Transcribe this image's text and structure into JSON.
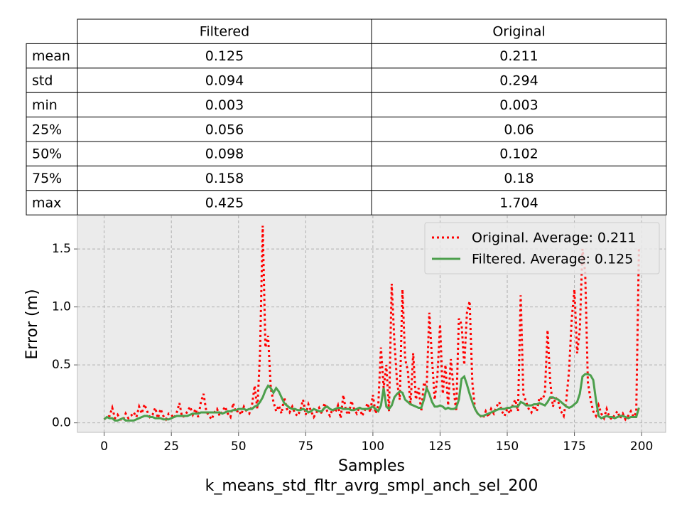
{
  "table": {
    "columns": [
      "Filtered",
      "Original"
    ],
    "rows": [
      {
        "label": "mean",
        "values": [
          0.125,
          0.211
        ]
      },
      {
        "label": "std",
        "values": [
          0.094,
          0.294
        ]
      },
      {
        "label": "min",
        "values": [
          0.003,
          0.003
        ]
      },
      {
        "label": "25%",
        "values": [
          0.056,
          0.06
        ]
      },
      {
        "label": "50%",
        "values": [
          0.098,
          0.102
        ]
      },
      {
        "label": "75%",
        "values": [
          0.158,
          0.18
        ]
      },
      {
        "label": "max",
        "values": [
          0.425,
          1.704
        ]
      }
    ]
  },
  "chart_data": {
    "type": "line",
    "xlabel": "Samples",
    "caption": "k_means_std_fltr_avrg_smpl_anch_sel_200",
    "ylabel": "Error (m)",
    "xlim": [
      -9.95,
      208.95
    ],
    "ylim": [
      -0.082,
      1.789
    ],
    "xticks": [
      0,
      25,
      50,
      75,
      100,
      125,
      150,
      175,
      200
    ],
    "yticks": [
      {
        "value": 0,
        "label": "0.0"
      },
      0.5,
      {
        "value": 1,
        "label": "1.0"
      },
      1.5
    ],
    "grid": true,
    "legend": "upper right",
    "x": [
      0,
      1,
      2,
      3,
      4,
      5,
      6,
      7,
      8,
      9,
      10,
      11,
      12,
      13,
      14,
      15,
      16,
      17,
      18,
      19,
      20,
      21,
      22,
      23,
      24,
      25,
      26,
      27,
      28,
      29,
      30,
      31,
      32,
      33,
      34,
      35,
      36,
      37,
      38,
      39,
      40,
      41,
      42,
      43,
      44,
      45,
      46,
      47,
      48,
      49,
      50,
      51,
      52,
      53,
      54,
      55,
      56,
      57,
      58,
      59,
      60,
      61,
      62,
      63,
      64,
      65,
      66,
      67,
      68,
      69,
      70,
      71,
      72,
      73,
      74,
      75,
      76,
      77,
      78,
      79,
      80,
      81,
      82,
      83,
      84,
      85,
      86,
      87,
      88,
      89,
      90,
      91,
      92,
      93,
      94,
      95,
      96,
      97,
      98,
      99,
      100,
      101,
      102,
      103,
      104,
      105,
      106,
      107,
      108,
      109,
      110,
      111,
      112,
      113,
      114,
      115,
      116,
      117,
      118,
      119,
      120,
      121,
      122,
      123,
      124,
      125,
      126,
      127,
      128,
      129,
      130,
      131,
      132,
      133,
      134,
      135,
      136,
      137,
      138,
      139,
      140,
      141,
      142,
      143,
      144,
      145,
      146,
      147,
      148,
      149,
      150,
      151,
      152,
      153,
      154,
      155,
      156,
      157,
      158,
      159,
      160,
      161,
      162,
      163,
      164,
      165,
      166,
      167,
      168,
      169,
      170,
      171,
      172,
      173,
      174,
      175,
      176,
      177,
      178,
      179,
      180,
      181,
      182,
      183,
      184,
      185,
      186,
      187,
      188,
      189,
      190,
      191,
      192,
      193,
      194,
      195,
      196,
      197,
      198,
      199
    ],
    "series": [
      {
        "name": "Original. Average: 0.211",
        "color": "#ff0000",
        "style": "dotted",
        "values": [
          0.03,
          0.05,
          0.06,
          0.13,
          0.04,
          0.07,
          0.03,
          0.02,
          0.08,
          0.04,
          0.06,
          0.09,
          0.05,
          0.14,
          0.08,
          0.16,
          0.1,
          0.05,
          0.07,
          0.13,
          0.04,
          0.12,
          0.06,
          0.03,
          0.08,
          0.07,
          0.04,
          0.09,
          0.17,
          0.05,
          0.06,
          0.1,
          0.14,
          0.07,
          0.12,
          0.05,
          0.18,
          0.25,
          0.1,
          0.06,
          0.03,
          0.09,
          0.12,
          0.06,
          0.1,
          0.14,
          0.08,
          0.05,
          0.17,
          0.09,
          0.11,
          0.07,
          0.14,
          0.1,
          0.08,
          0.15,
          0.32,
          0.12,
          0.6,
          1.7,
          0.65,
          0.75,
          0.3,
          0.18,
          0.1,
          0.15,
          0.08,
          0.22,
          0.12,
          0.09,
          0.14,
          0.08,
          0.06,
          0.11,
          0.2,
          0.07,
          0.16,
          0.1,
          0.05,
          0.09,
          0.13,
          0.08,
          0.17,
          0.1,
          0.06,
          0.12,
          0.09,
          0.15,
          0.04,
          0.24,
          0.1,
          0.07,
          0.19,
          0.12,
          0.08,
          0.14,
          0.06,
          0.11,
          0.17,
          0.09,
          0.24,
          0.08,
          0.15,
          0.65,
          0.3,
          0.5,
          0.1,
          1.2,
          0.7,
          0.35,
          0.2,
          1.15,
          0.55,
          0.45,
          0.15,
          0.6,
          0.2,
          0.3,
          0.1,
          0.35,
          0.3,
          0.95,
          0.55,
          0.2,
          0.4,
          0.85,
          0.25,
          0.5,
          0.15,
          0.55,
          0.3,
          0.1,
          0.9,
          0.85,
          0.5,
          0.95,
          1.05,
          0.35,
          0.12,
          0.08,
          0.06,
          0.04,
          0.1,
          0.05,
          0.12,
          0.08,
          0.14,
          0.18,
          0.1,
          0.06,
          0.12,
          0.08,
          0.15,
          0.2,
          0.1,
          1.1,
          0.25,
          0.18,
          0.12,
          0.09,
          0.15,
          0.1,
          0.22,
          0.2,
          0.25,
          0.8,
          0.35,
          0.14,
          0.22,
          0.18,
          0.1,
          0.06,
          0.2,
          0.45,
          0.9,
          1.15,
          0.6,
          0.8,
          1.5,
          1.3,
          0.35,
          0.2,
          0.1,
          0.06,
          0.15,
          0.08,
          0.04,
          0.12,
          0.05,
          0.03,
          0.07,
          0.1,
          0.04,
          0.08,
          0.03,
          0.06,
          0.1,
          0.05,
          0.09,
          1.5
        ]
      },
      {
        "name": "Filtered. Average: 0.125",
        "color": "#4c9f4c",
        "style": "solid",
        "values": [
          0.03,
          0.05,
          0.04,
          0.04,
          0.02,
          0.02,
          0.03,
          0.04,
          0.02,
          0.02,
          0.02,
          0.02,
          0.03,
          0.04,
          0.05,
          0.06,
          0.06,
          0.05,
          0.05,
          0.04,
          0.04,
          0.04,
          0.03,
          0.03,
          0.03,
          0.04,
          0.05,
          0.06,
          0.06,
          0.06,
          0.06,
          0.06,
          0.07,
          0.08,
          0.08,
          0.08,
          0.09,
          0.09,
          0.09,
          0.09,
          0.09,
          0.09,
          0.09,
          0.09,
          0.08,
          0.09,
          0.1,
          0.1,
          0.11,
          0.11,
          0.12,
          0.12,
          0.12,
          0.11,
          0.12,
          0.12,
          0.14,
          0.15,
          0.18,
          0.22,
          0.28,
          0.32,
          0.3,
          0.26,
          0.3,
          0.27,
          0.22,
          0.17,
          0.15,
          0.13,
          0.12,
          0.12,
          0.11,
          0.11,
          0.12,
          0.11,
          0.09,
          0.1,
          0.12,
          0.11,
          0.1,
          0.1,
          0.13,
          0.14,
          0.12,
          0.11,
          0.12,
          0.13,
          0.13,
          0.12,
          0.12,
          0.12,
          0.11,
          0.11,
          0.12,
          0.13,
          0.12,
          0.12,
          0.12,
          0.13,
          0.14,
          0.12,
          0.1,
          0.15,
          0.3,
          0.14,
          0.12,
          0.15,
          0.22,
          0.25,
          0.27,
          0.26,
          0.2,
          0.18,
          0.16,
          0.15,
          0.14,
          0.13,
          0.13,
          0.2,
          0.3,
          0.25,
          0.18,
          0.14,
          0.14,
          0.15,
          0.14,
          0.12,
          0.13,
          0.12,
          0.12,
          0.13,
          0.2,
          0.38,
          0.4,
          0.33,
          0.25,
          0.18,
          0.12,
          0.08,
          0.06,
          0.06,
          0.07,
          0.08,
          0.09,
          0.1,
          0.11,
          0.12,
          0.12,
          0.12,
          0.13,
          0.13,
          0.14,
          0.14,
          0.14,
          0.18,
          0.17,
          0.15,
          0.15,
          0.15,
          0.16,
          0.16,
          0.17,
          0.16,
          0.15,
          0.18,
          0.22,
          0.22,
          0.21,
          0.2,
          0.18,
          0.16,
          0.14,
          0.13,
          0.14,
          0.16,
          0.18,
          0.25,
          0.4,
          0.42,
          0.42,
          0.41,
          0.37,
          0.2,
          0.06,
          0.04,
          0.05,
          0.06,
          0.05,
          0.05,
          0.04,
          0.05,
          0.06,
          0.06,
          0.05,
          0.04,
          0.05,
          0.05,
          0.05,
          0.13
        ]
      }
    ]
  }
}
